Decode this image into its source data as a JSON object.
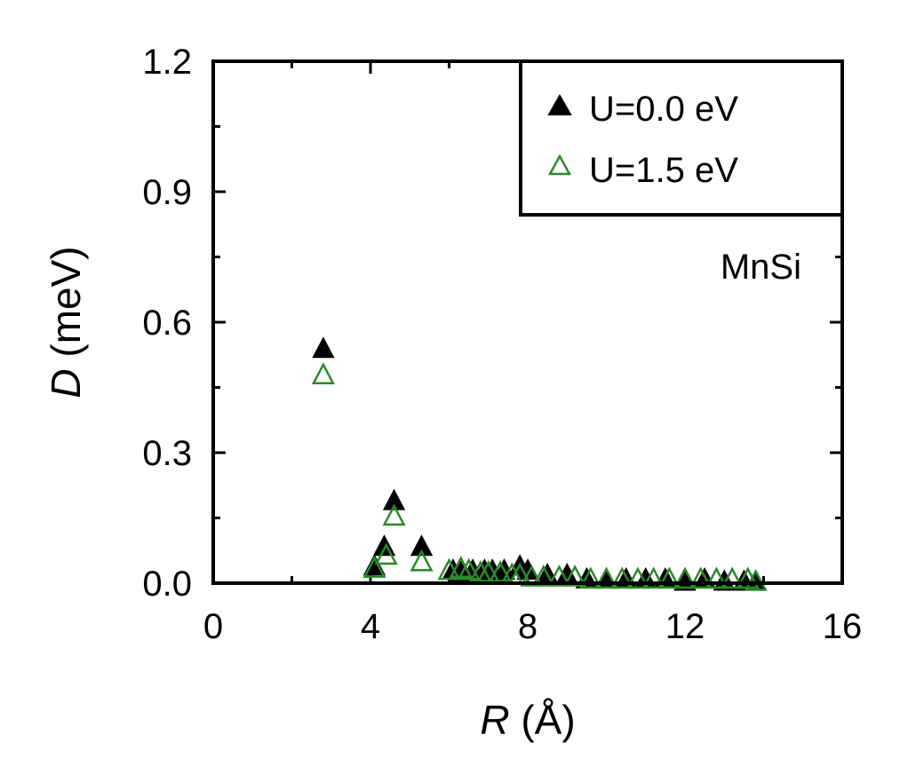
{
  "chart_data": {
    "type": "scatter",
    "title": "",
    "xlabel": {
      "symbol": "R",
      "unit": "(Å)"
    },
    "ylabel": {
      "symbol": "D",
      "unit": "(meV)"
    },
    "xlim": [
      0,
      16
    ],
    "ylim": [
      0,
      1.2
    ],
    "xticks": [
      0,
      4,
      8,
      12,
      16
    ],
    "xtick_labels": [
      "0",
      "4",
      "8",
      "12",
      "16"
    ],
    "yticks": [
      0.0,
      0.3,
      0.6,
      0.9,
      1.2
    ],
    "ytick_labels": [
      "0.0",
      "0.3",
      "0.6",
      "0.9",
      "1.2"
    ],
    "grid": false,
    "legend_position": "top-right",
    "annotation": "MnSi",
    "series": [
      {
        "name": "U=0.0 eV",
        "marker": "filled-triangle",
        "color": "#000000",
        "x": [
          2.8,
          4.1,
          4.35,
          4.6,
          5.3,
          6.1,
          6.3,
          6.6,
          6.9,
          7.1,
          7.4,
          7.8,
          8.0,
          8.5,
          9.0,
          9.5,
          10.0,
          10.5,
          11.0,
          11.5,
          12.0,
          12.5,
          13.0,
          13.5,
          13.8
        ],
        "y": [
          0.54,
          0.04,
          0.085,
          0.19,
          0.085,
          0.03,
          0.025,
          0.03,
          0.03,
          0.03,
          0.03,
          0.04,
          0.03,
          0.02,
          0.02,
          0.01,
          0.01,
          0.01,
          0.01,
          0.01,
          0.005,
          0.01,
          0.005,
          0.005,
          0.005
        ]
      },
      {
        "name": "U=1.5 eV",
        "marker": "open-triangle",
        "color": "#2a8a2a",
        "x": [
          2.8,
          4.1,
          4.4,
          4.6,
          5.3,
          6.0,
          6.3,
          6.5,
          6.8,
          7.0,
          7.3,
          7.6,
          7.8,
          8.1,
          8.4,
          8.8,
          9.2,
          9.6,
          10.0,
          10.4,
          10.8,
          11.2,
          11.6,
          12.0,
          12.4,
          12.8,
          13.2,
          13.6,
          13.8
        ],
        "y": [
          0.48,
          0.035,
          0.065,
          0.155,
          0.05,
          0.03,
          0.035,
          0.03,
          0.025,
          0.025,
          0.025,
          0.02,
          0.02,
          0.015,
          0.015,
          0.015,
          0.015,
          0.01,
          0.01,
          0.01,
          0.01,
          0.01,
          0.01,
          0.01,
          0.01,
          0.01,
          0.01,
          0.01,
          0.005
        ]
      }
    ]
  }
}
